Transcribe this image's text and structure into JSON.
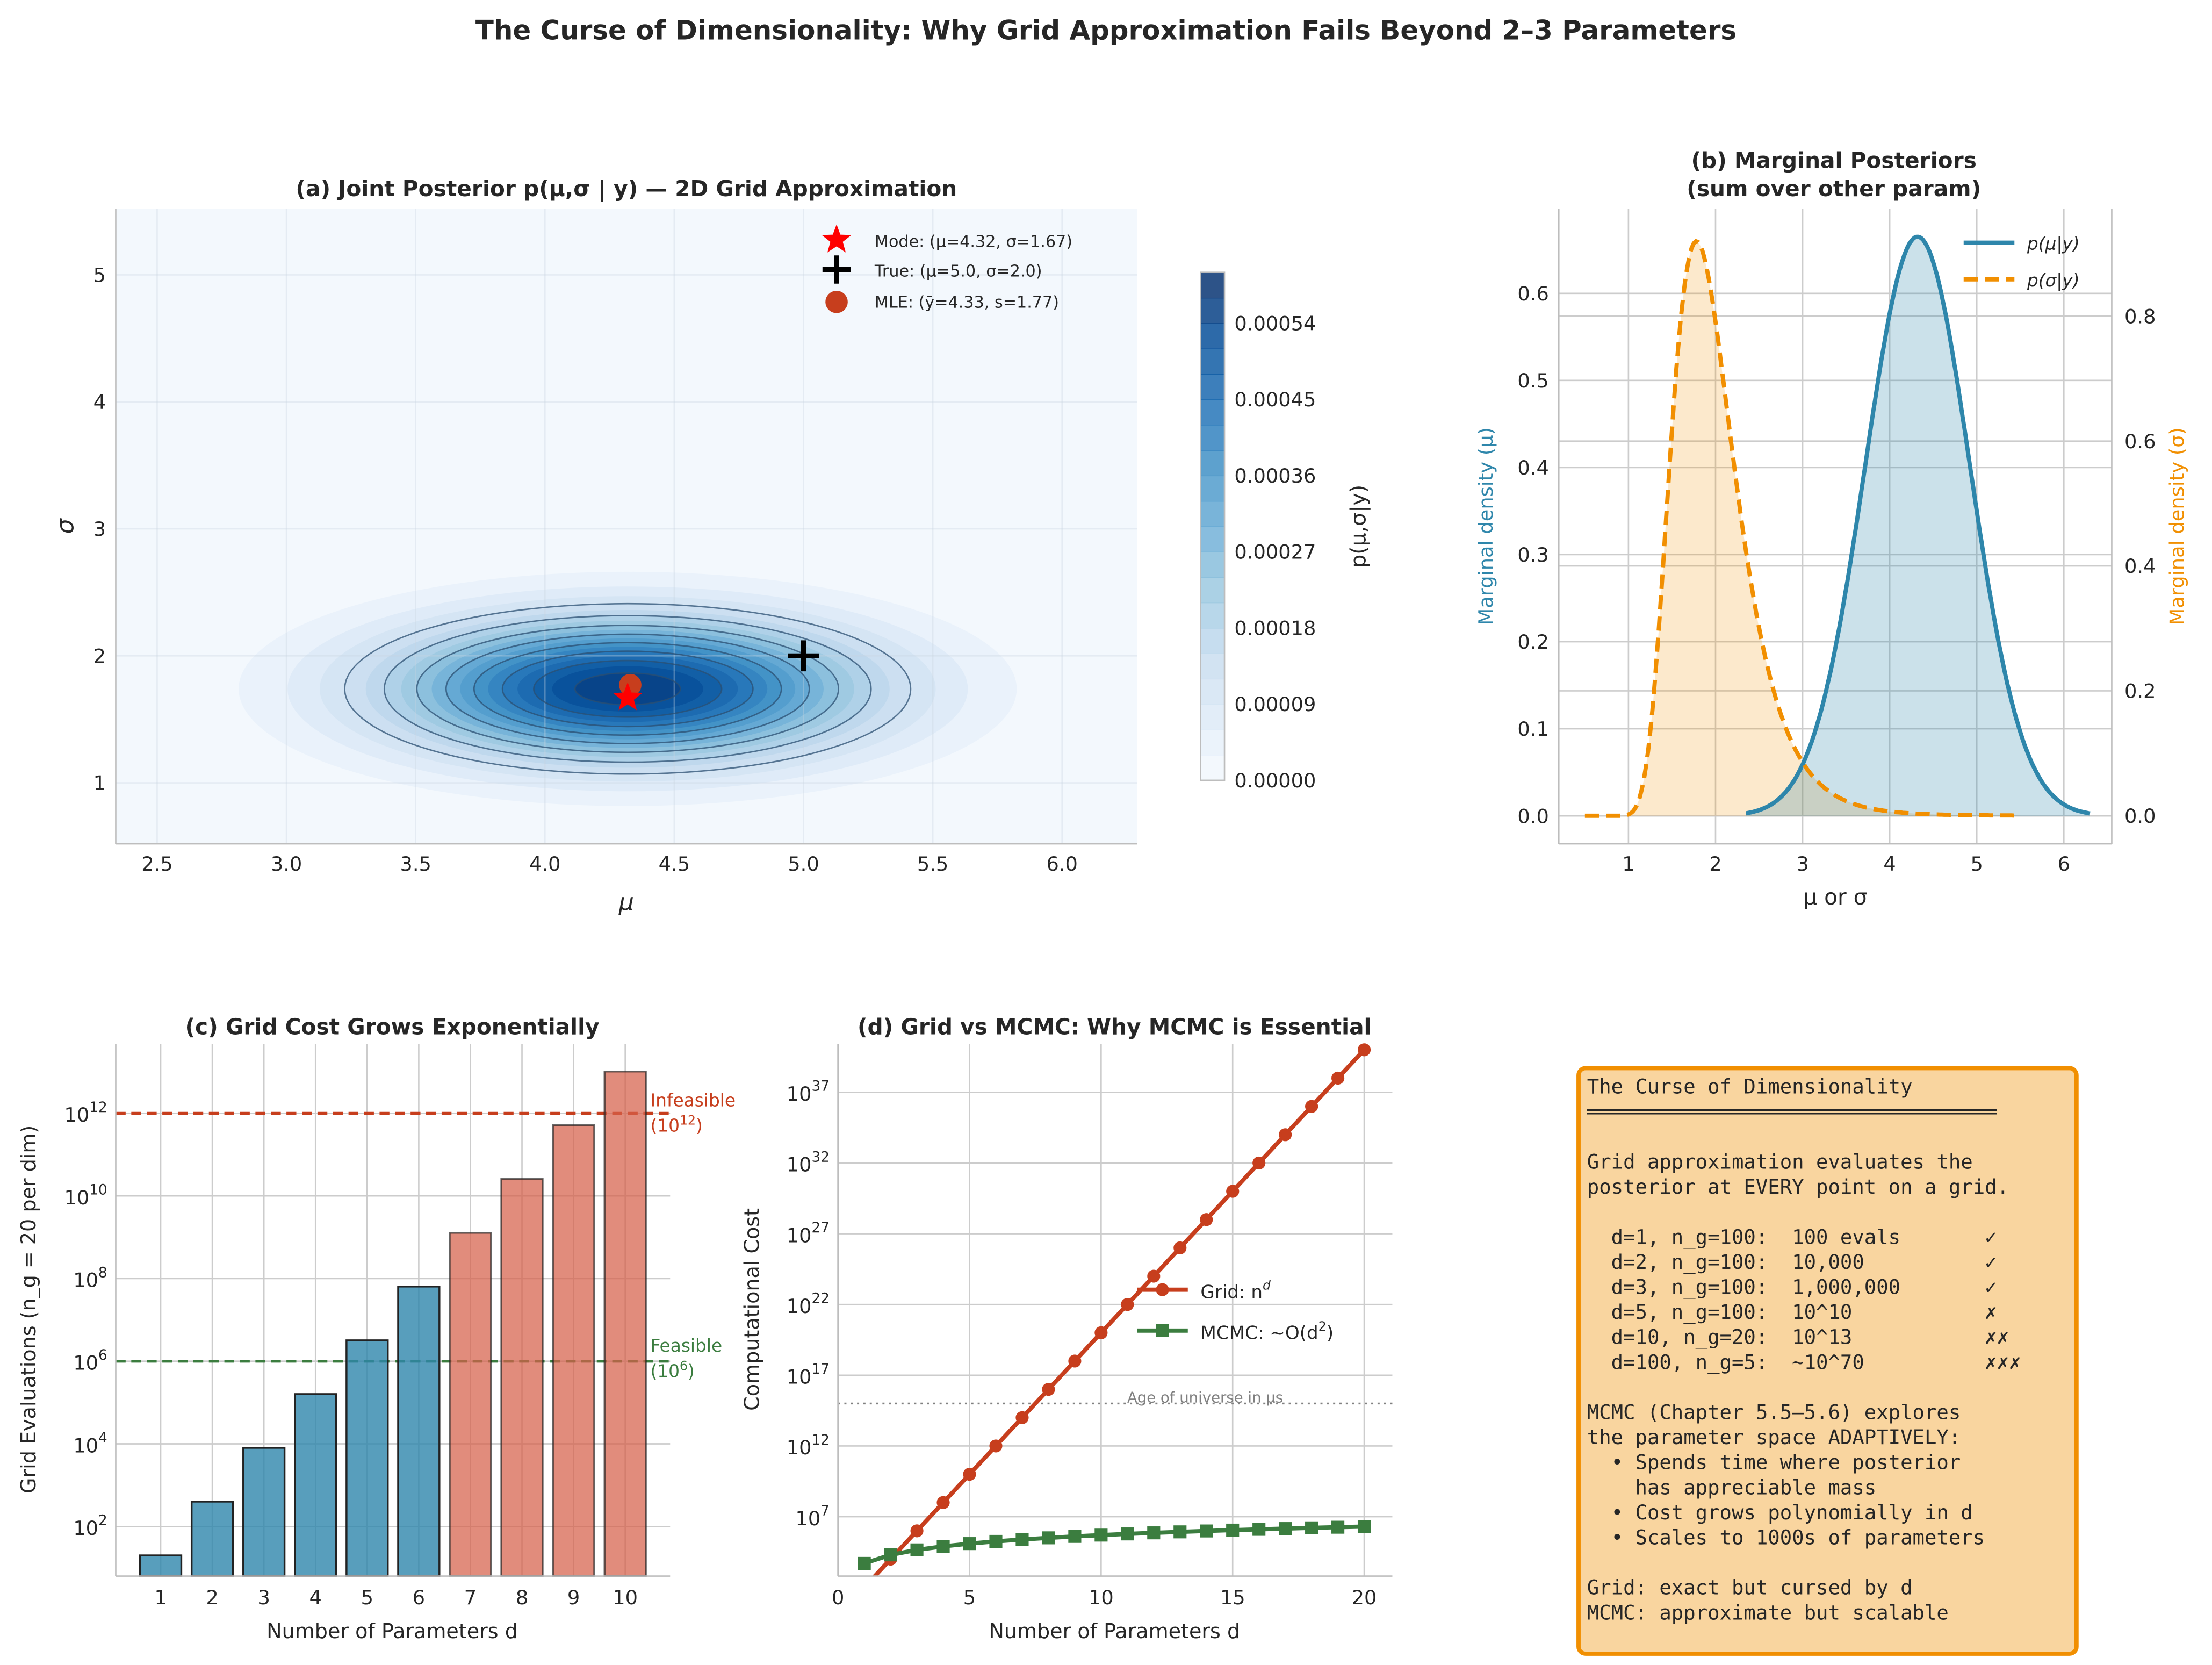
{
  "figure": {
    "title": "The Curse of Dimensionality: Why Grid Approximation Fails Beyond 2–3 Parameters"
  },
  "colors": {
    "blue": "#2e86ab",
    "orange": "#f18f01",
    "red": "#c73e1d",
    "green": "#3b7d3f",
    "box_fill": "#f9d59f"
  },
  "chart_data": [
    {
      "id": "a",
      "type": "contour",
      "title": "(a) Joint Posterior p(μ,σ | y) — 2D Grid Approximation",
      "xlabel": "μ",
      "ylabel": "σ",
      "xlim": [
        2.34,
        6.29
      ],
      "ylim": [
        0.52,
        5.52
      ],
      "xticks": [
        2.5,
        3.0,
        3.5,
        4.0,
        4.5,
        5.0,
        5.5,
        6.0
      ],
      "xtick_labels": [
        "2.5",
        "3.0",
        "3.5",
        "4.0",
        "4.5",
        "5.0",
        "5.5",
        "6.0"
      ],
      "yticks": [
        1,
        2,
        3,
        4,
        5
      ],
      "ytick_labels": [
        "1",
        "2",
        "3",
        "4",
        "5"
      ],
      "colormap": "Blues",
      "density": {
        "mu_center": 4.32,
        "sigma_center": 1.74,
        "mu_sd": 0.62,
        "sigma_sd": 0.38,
        "peak": 0.00057
      },
      "fill_level_step": 3e-05,
      "line_levels": [
        0.00012,
        0.00018,
        0.00024,
        0.0003,
        0.00036,
        0.00042,
        0.00048,
        0.00054
      ],
      "colorbar": {
        "label": "p(μ,σ|y)",
        "range": [
          0,
          0.0006
        ],
        "ticks": [
          0,
          9e-05,
          0.00018,
          0.00027,
          0.00036,
          0.00045,
          0.00054
        ],
        "tick_labels": [
          "0.00000",
          "0.00009",
          "0.00018",
          "0.00027",
          "0.00036",
          "0.00045",
          "0.00054"
        ]
      },
      "markers": [
        {
          "label": "Mode: (μ=4.32, σ=1.67)",
          "mu": 4.32,
          "sigma": 1.67,
          "shape": "star",
          "color": "#ff0000"
        },
        {
          "label": "True: (μ=5.0, σ=2.0)",
          "mu": 5.0,
          "sigma": 2.0,
          "shape": "plus",
          "color": "#000000"
        },
        {
          "label": "MLE: (ȳ=4.33, s=1.77)",
          "mu": 4.33,
          "sigma": 1.77,
          "shape": "circle",
          "color": "#c73e1d"
        }
      ],
      "legend_position": "top-right"
    },
    {
      "id": "b",
      "type": "line",
      "title": [
        "(b) Marginal Posteriors",
        "(sum over other param)"
      ],
      "xlabel": "μ or σ",
      "ylabel_left": "Marginal density (μ)",
      "ylabel_right": "Marginal density (σ)",
      "xlim": [
        0.2,
        6.55
      ],
      "ylim_left": [
        -0.032,
        0.697
      ],
      "ylim_right": [
        -0.045,
        0.972
      ],
      "xticks": [
        1,
        2,
        3,
        4,
        5,
        6
      ],
      "xtick_labels": [
        "1",
        "2",
        "3",
        "4",
        "5",
        "6"
      ],
      "yticks_left": [
        0,
        0.1,
        0.2,
        0.3,
        0.4,
        0.5,
        0.6
      ],
      "ytick_labels_left": [
        "0.0",
        "0.1",
        "0.2",
        "0.3",
        "0.4",
        "0.5",
        "0.6"
      ],
      "yticks_right": [
        0,
        0.2,
        0.4,
        0.6,
        0.8
      ],
      "ytick_labels_right": [
        "0.0",
        "0.2",
        "0.4",
        "0.6",
        "0.8"
      ],
      "series": [
        {
          "name": "p(μ|y)",
          "axis": "left",
          "style": "solid",
          "color": "#2e86ab",
          "x_range": [
            2.35,
            6.3
          ],
          "mode": 4.32,
          "sd": 0.6,
          "peak": 0.665
        },
        {
          "name": "p(σ|y)",
          "axis": "right",
          "style": "dashed",
          "color": "#f18f01",
          "x_range": [
            0.5,
            5.5
          ],
          "mode": 1.78,
          "peak": 0.92
        }
      ],
      "legend_position": "top-right"
    },
    {
      "id": "c",
      "type": "bar",
      "title": "(c) Grid Cost Grows Exponentially",
      "xlabel": "Number of Parameters d",
      "ylabel": "Grid Evaluations (n_g = 20 per dim)",
      "yscale": "log",
      "ylim": [
        6.3,
        47000000000000.0
      ],
      "categories": [
        1,
        2,
        3,
        4,
        5,
        6,
        7,
        8,
        9,
        10
      ],
      "values": [
        20,
        400,
        8000,
        160000,
        3200000,
        64000000,
        1280000000,
        25600000000,
        512000000000,
        10240000000000
      ],
      "bar_colors": [
        "blue",
        "blue",
        "blue",
        "blue",
        "blue",
        "blue",
        "red",
        "red",
        "red",
        "red"
      ],
      "yticks": [
        2,
        4,
        6,
        8,
        10,
        12
      ],
      "thresholds": [
        {
          "value": 1000000000000.0,
          "label": "Infeasible",
          "sublabel": "(10",
          "exp": "12",
          "close": ")",
          "color": "#c73e1d"
        },
        {
          "value": 1000000.0,
          "label": "Feasible",
          "sublabel": "(10",
          "exp": "6",
          "close": ")",
          "color": "#3b7d3f"
        }
      ]
    },
    {
      "id": "d",
      "type": "line",
      "title": "(d) Grid vs MCMC: Why MCMC is Essential",
      "xlabel": "Number of Parameters d",
      "ylabel": "Computational Cost",
      "yscale": "log",
      "xlim": [
        0,
        21.07
      ],
      "ylim_log10": [
        2.8,
        40.4
      ],
      "xticks": [
        0,
        5,
        10,
        15,
        20
      ],
      "xtick_labels": [
        "0",
        "5",
        "10",
        "15",
        "20"
      ],
      "yticks": [
        7,
        12,
        17,
        22,
        27,
        32,
        37
      ],
      "x": [
        1,
        2,
        3,
        4,
        5,
        6,
        7,
        8,
        9,
        10,
        11,
        12,
        13,
        14,
        15,
        16,
        17,
        18,
        19,
        20
      ],
      "series": [
        {
          "name": "Grid: n_g^d",
          "legend_main": "Grid: n",
          "legend_sub": "g",
          "legend_sup": "d",
          "color": "#c73e1d",
          "marker": "circle",
          "log10_values": [
            2,
            4,
            6,
            8,
            10,
            12,
            14,
            16,
            18,
            20,
            22,
            24,
            26,
            28,
            30,
            32,
            34,
            36,
            38,
            40
          ]
        },
        {
          "name": "MCMC: ~O(d²)",
          "legend_main": "MCMC: ~O(d",
          "legend_sup": "2",
          "legend_close": ")",
          "color": "#3b7d3f",
          "marker": "square",
          "values": [
            5000,
            20000,
            45000,
            80000,
            125000,
            180000,
            245000,
            320000,
            405000,
            500000,
            605000,
            720000,
            845000,
            980000,
            1125000,
            1280000,
            1445000,
            1620000,
            1805000,
            2000000
          ]
        }
      ],
      "reference": {
        "label": "Age of universe in μs",
        "log10_value": 15
      },
      "legend_position": "center-right"
    }
  ],
  "textbox": {
    "lines": [
      "The Curse of Dimensionality",
      "══════════════════════════════════",
      "",
      "Grid approximation evaluates the",
      "posterior at EVERY point on a grid.",
      "",
      "  d=1, n_g=100:  100 evals       ✓",
      "  d=2, n_g=100:  10,000          ✓",
      "  d=3, n_g=100:  1,000,000       ✓",
      "  d=5, n_g=100:  10^10           ✗",
      "  d=10, n_g=20:  10^13           ✗✗",
      "  d=100, n_g=5:  ~10^70          ✗✗✗",
      "",
      "MCMC (Chapter 5.5–5.6) explores",
      "the parameter space ADAPTIVELY:",
      "  • Spends time where posterior",
      "    has appreciable mass",
      "  • Cost grows polynomially in d",
      "  • Scales to 1000s of parameters",
      "",
      "Grid: exact but cursed by d",
      "MCMC: approximate but scalable"
    ]
  }
}
